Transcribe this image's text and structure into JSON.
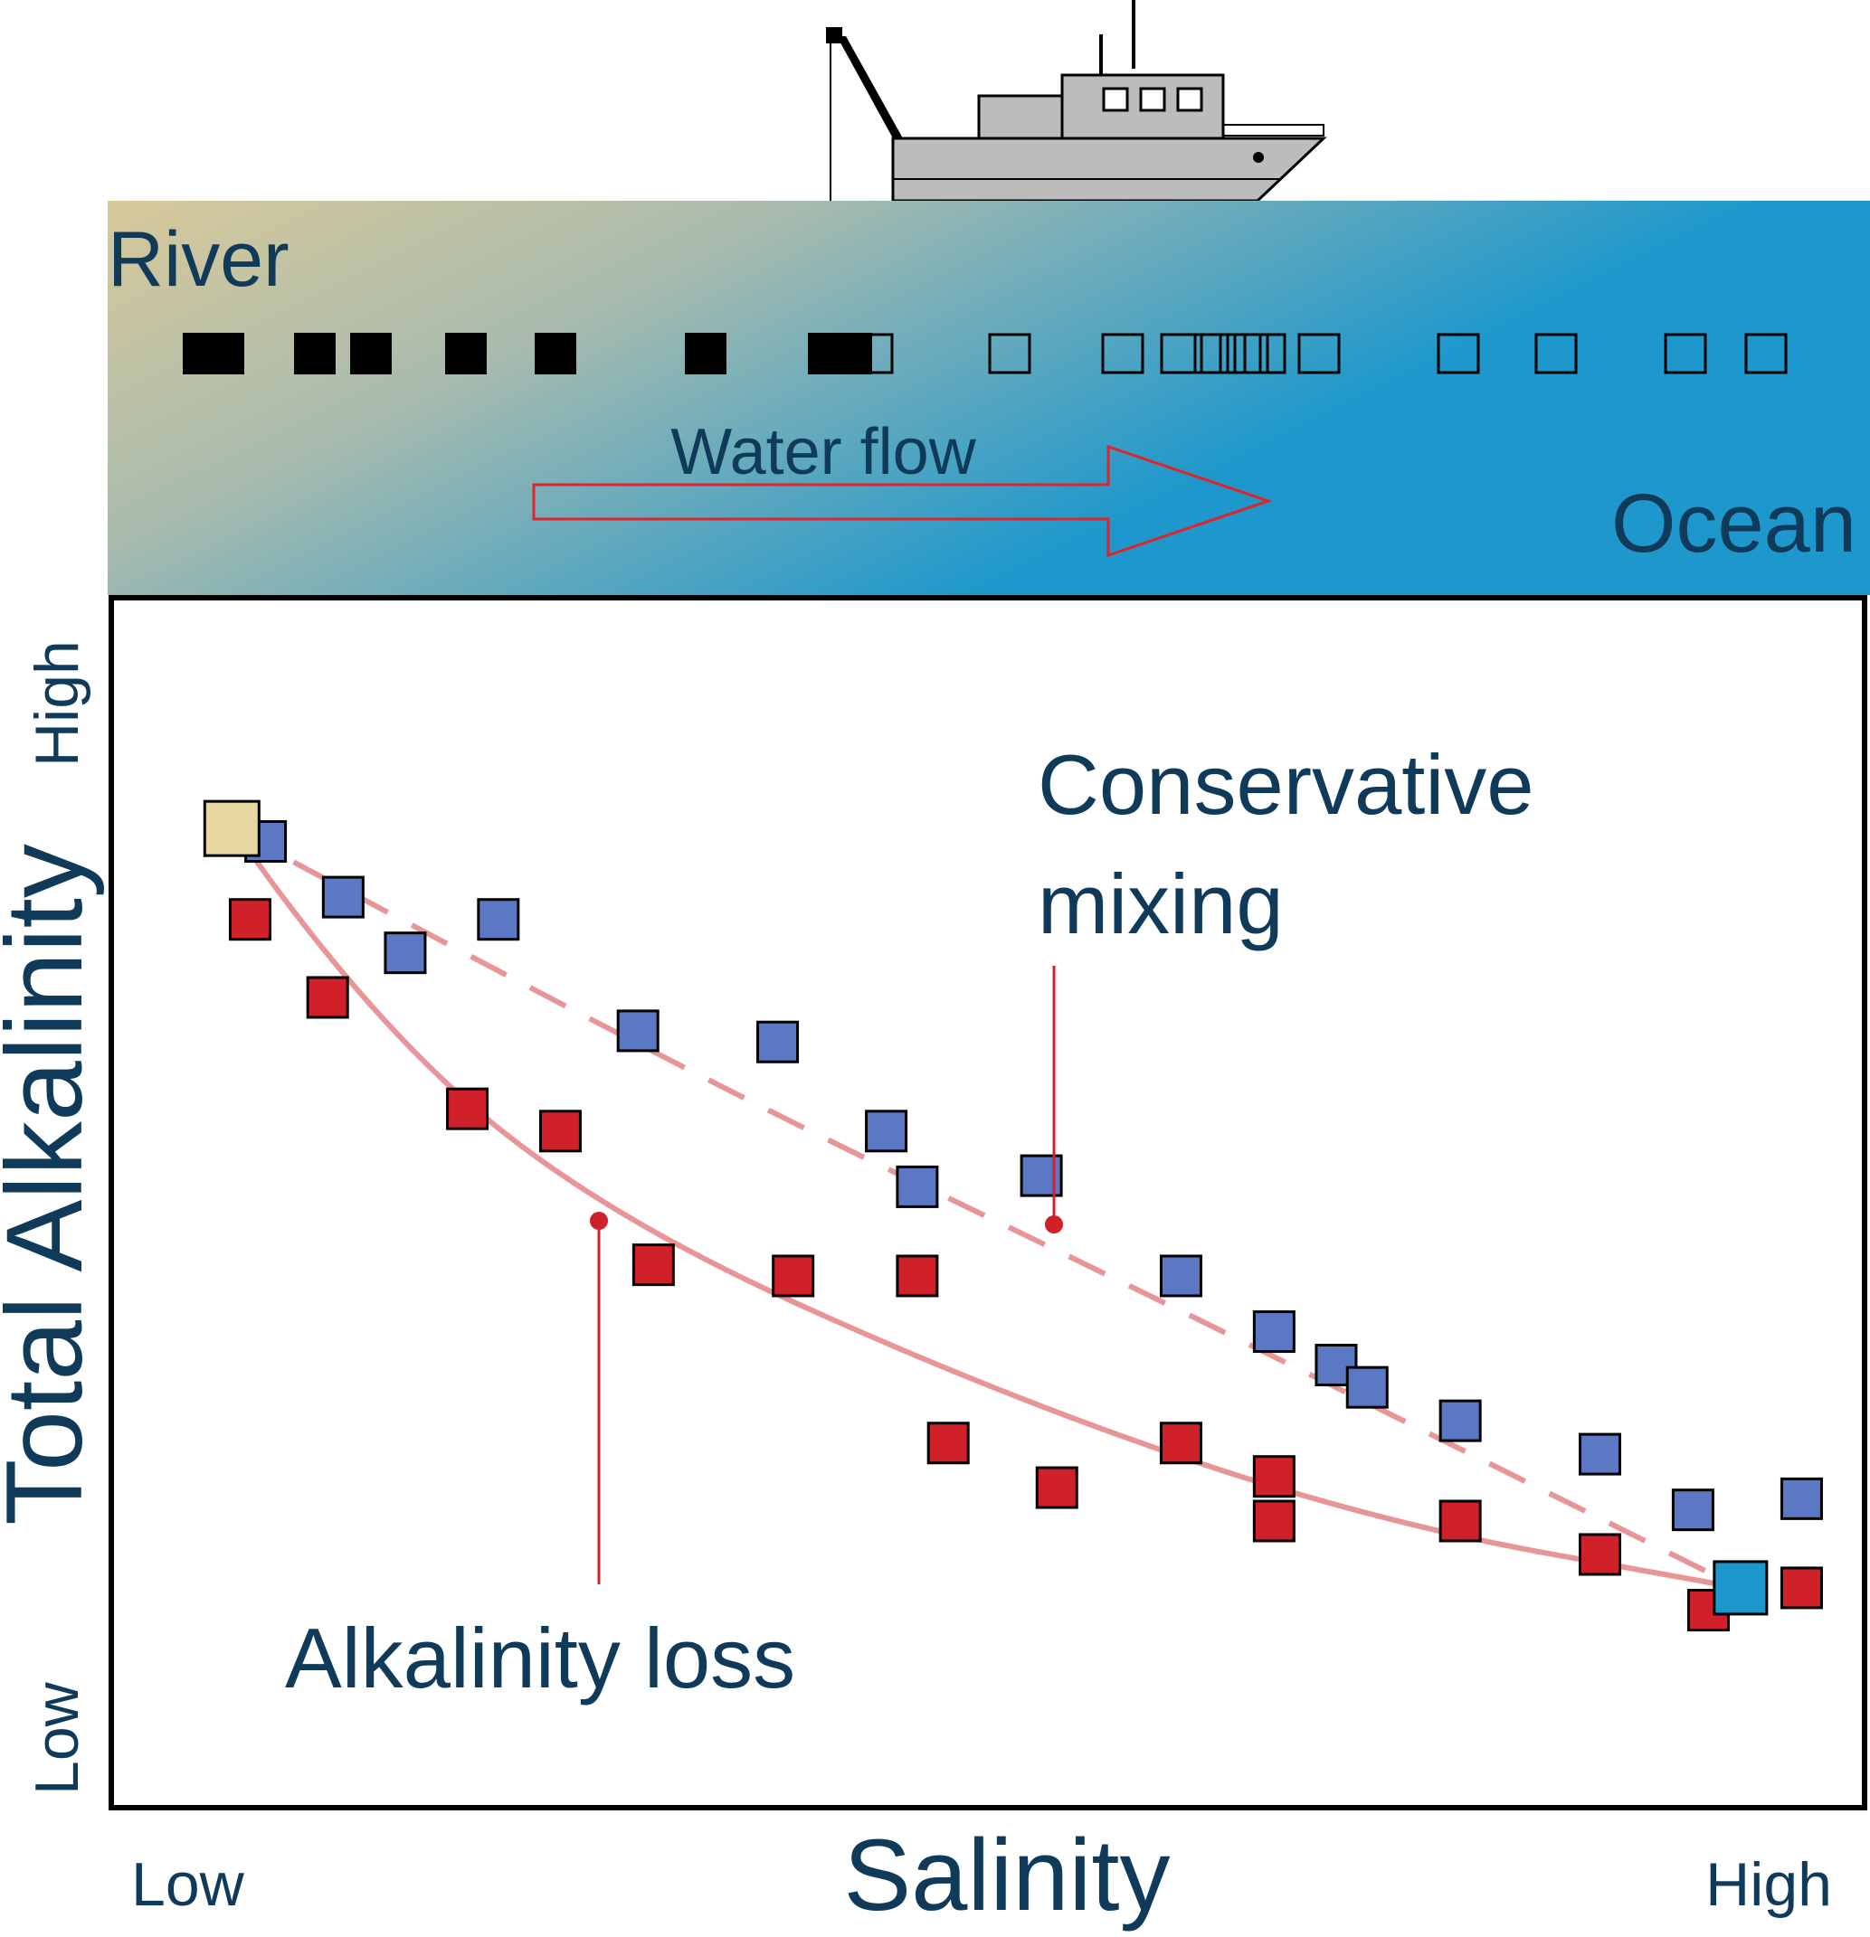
{
  "estuary": {
    "river_label": "River",
    "ocean_label": "Ocean",
    "flow_label": "Water flow",
    "river_color": "#d8c99a",
    "ocean_color": "#1e98cc",
    "arrow_color": "#e0242b",
    "sampled_stations": 9,
    "unsampled_stations": 13
  },
  "ship": {
    "hull_color": "#bcbcbc"
  },
  "chart_data": {
    "type": "scatter",
    "xlabel": "Salinity",
    "ylabel": "Total Alkalinity",
    "x_ticks": {
      "low": "Low",
      "high": "High"
    },
    "y_ticks": {
      "low": "Low",
      "high": "High"
    },
    "xlim": [
      0,
      1
    ],
    "ylim": [
      0,
      1
    ],
    "colors": {
      "conservative": "#5b78c4",
      "loss": "#d0202a",
      "river_end": "#e6d7a3",
      "ocean_end": "#1e98cc",
      "curve": "#e89598",
      "annotation": "#d0202a",
      "text": "#0f3a5a"
    },
    "endmembers": {
      "river": {
        "x": 0.02,
        "y": 0.87
      },
      "ocean": {
        "x": 0.99,
        "y": 0.19
      }
    },
    "series": [
      {
        "name": "Conservative mixing",
        "style": "dashed",
        "curve": [
          [
            0.02,
            0.87
          ],
          [
            0.3,
            0.66
          ],
          [
            0.6,
            0.46
          ],
          [
            0.99,
            0.19
          ]
        ],
        "points": [
          [
            0.04,
            0.86
          ],
          [
            0.09,
            0.81
          ],
          [
            0.13,
            0.76
          ],
          [
            0.19,
            0.79
          ],
          [
            0.28,
            0.69
          ],
          [
            0.37,
            0.68
          ],
          [
            0.44,
            0.6
          ],
          [
            0.46,
            0.55
          ],
          [
            0.54,
            0.56
          ],
          [
            0.63,
            0.47
          ],
          [
            0.69,
            0.42
          ],
          [
            0.73,
            0.39
          ],
          [
            0.75,
            0.37
          ],
          [
            0.81,
            0.34
          ],
          [
            0.9,
            0.31
          ],
          [
            0.96,
            0.26
          ],
          [
            1.03,
            0.27
          ]
        ]
      },
      {
        "name": "Alkalinity loss",
        "style": "solid",
        "curve": [
          [
            0.02,
            0.87
          ],
          [
            0.1,
            0.71
          ],
          [
            0.25,
            0.53
          ],
          [
            0.5,
            0.37
          ],
          [
            0.75,
            0.25
          ],
          [
            0.99,
            0.19
          ]
        ],
        "points": [
          [
            0.03,
            0.79
          ],
          [
            0.08,
            0.72
          ],
          [
            0.17,
            0.62
          ],
          [
            0.23,
            0.6
          ],
          [
            0.29,
            0.48
          ],
          [
            0.38,
            0.47
          ],
          [
            0.46,
            0.47
          ],
          [
            0.48,
            0.32
          ],
          [
            0.55,
            0.28
          ],
          [
            0.63,
            0.32
          ],
          [
            0.69,
            0.25
          ],
          [
            0.69,
            0.29
          ],
          [
            0.81,
            0.25
          ],
          [
            0.9,
            0.22
          ],
          [
            0.97,
            0.17
          ],
          [
            1.03,
            0.19
          ]
        ]
      }
    ],
    "annotations": [
      {
        "text_lines": [
          "Conservative",
          "mixing"
        ],
        "target_series": "Conservative mixing"
      },
      {
        "text_lines": [
          "Alkalinity loss"
        ],
        "target_series": "Alkalinity loss"
      }
    ]
  }
}
